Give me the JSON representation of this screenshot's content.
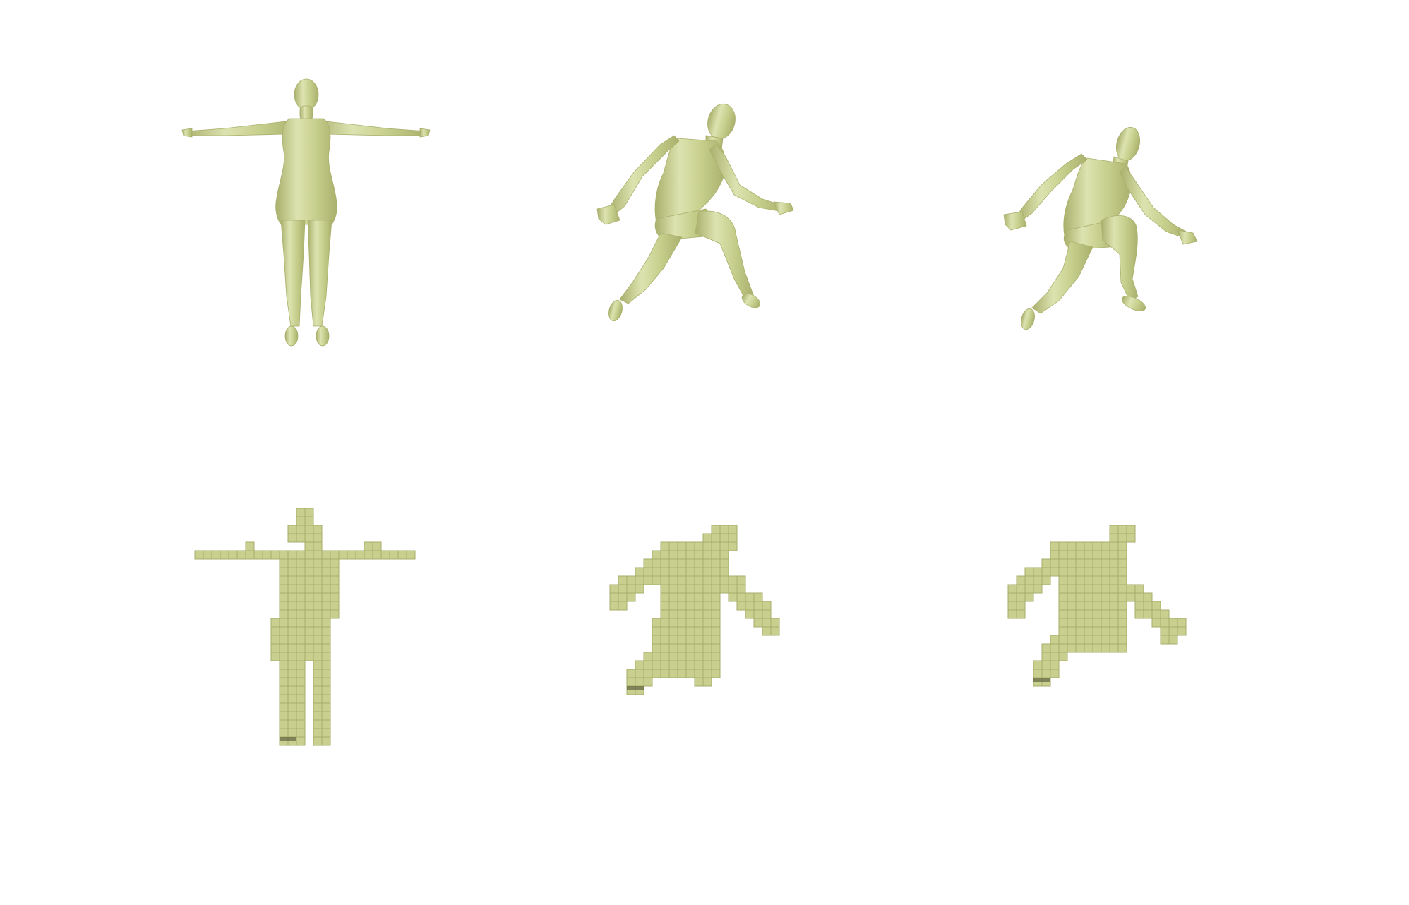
{
  "figure": {
    "background": "#ffffff",
    "mesh_color": "#c7cf8d",
    "mesh_shade": "#a9b06c",
    "mesh_highlight": "#dde3b0",
    "voxel_color": "#c9d08f",
    "voxel_edge": "#a6ad6a",
    "voxel_dark": "#5f6440",
    "rows": [
      {
        "name": "mesh-row",
        "items": [
          {
            "name": "tpose-mesh",
            "icon": "human-body-mesh-icon"
          },
          {
            "name": "lunge-pose-mesh",
            "icon": "human-body-mesh-icon"
          },
          {
            "name": "leaping-pose-mesh",
            "icon": "human-body-mesh-icon"
          }
        ]
      },
      {
        "name": "voxel-row",
        "items": [
          {
            "name": "tpose-voxels",
            "icon": "voxel-body-icon"
          },
          {
            "name": "lunge-pose-voxels",
            "icon": "voxel-body-icon"
          },
          {
            "name": "leaping-pose-voxels",
            "icon": "voxel-body-icon"
          }
        ]
      }
    ]
  }
}
